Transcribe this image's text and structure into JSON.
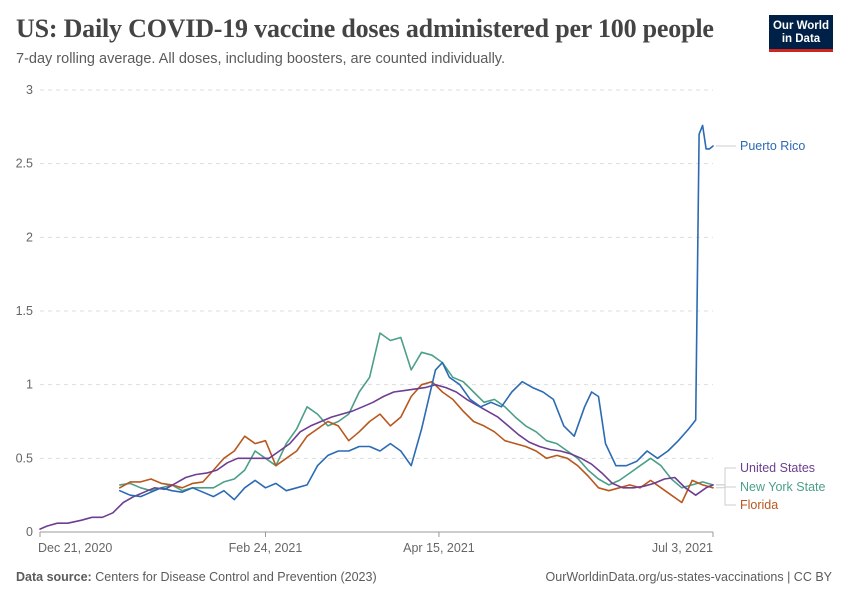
{
  "header": {
    "title": "US: Daily COVID-19 vaccine doses administered per 100 people",
    "subtitle": "7-day rolling average. All doses, including boosters, are counted individually.",
    "logo_line1": "Our World",
    "logo_line2": "in Data"
  },
  "footer": {
    "source_label": "Data source:",
    "source_text": "Centers for Disease Control and Prevention (2023)",
    "url_text": "OurWorldinData.org/us-states-vaccinations | CC BY"
  },
  "colors": {
    "United States": "#6d3e91",
    "Puerto Rico": "#2c6ab3",
    "New York State": "#4c9f89",
    "Florida": "#b8581f"
  },
  "chart_data": {
    "type": "line",
    "title": "US: Daily COVID-19 vaccine doses administered per 100 people",
    "xlabel": "",
    "ylabel": "",
    "ylim": [
      0,
      3
    ],
    "yticks": [
      0,
      0.5,
      1,
      1.5,
      2,
      2.5,
      3
    ],
    "ytick_labels": [
      "0",
      "0.5",
      "1",
      "1.5",
      "2",
      "2.5",
      "3"
    ],
    "xlim": [
      0,
      194
    ],
    "xtick_labels": [
      {
        "day": 0,
        "label": "Dec 21, 2020"
      },
      {
        "day": 65,
        "label": "Feb 24, 2021"
      },
      {
        "day": 115,
        "label": "Apr 15, 2021"
      },
      {
        "day": 194,
        "label": "Jul 3, 2021"
      }
    ],
    "x_unit": "days since Dec 21, 2020",
    "grid": true,
    "series": [
      {
        "name": "United States",
        "days": [
          0,
          2,
          5,
          8,
          12,
          15,
          18,
          21,
          24,
          27,
          30,
          33,
          36,
          39,
          42,
          45,
          48,
          51,
          54,
          57,
          60,
          63,
          66,
          69,
          72,
          75,
          78,
          81,
          84,
          87,
          90,
          93,
          96,
          99,
          102,
          105,
          108,
          111,
          114,
          117,
          120,
          123,
          126,
          129,
          132,
          135,
          138,
          141,
          144,
          147,
          150,
          153,
          156,
          159,
          162,
          165,
          168,
          171,
          174,
          177,
          180,
          183,
          186,
          189,
          192,
          194
        ],
        "values": [
          0.02,
          0.04,
          0.06,
          0.06,
          0.08,
          0.1,
          0.1,
          0.13,
          0.2,
          0.24,
          0.27,
          0.3,
          0.29,
          0.33,
          0.37,
          0.39,
          0.4,
          0.42,
          0.47,
          0.5,
          0.5,
          0.5,
          0.5,
          0.55,
          0.6,
          0.68,
          0.72,
          0.75,
          0.78,
          0.8,
          0.82,
          0.85,
          0.88,
          0.92,
          0.95,
          0.96,
          0.97,
          0.98,
          1.0,
          0.98,
          0.95,
          0.9,
          0.86,
          0.82,
          0.78,
          0.72,
          0.66,
          0.61,
          0.58,
          0.56,
          0.55,
          0.53,
          0.5,
          0.46,
          0.4,
          0.33,
          0.3,
          0.3,
          0.31,
          0.33,
          0.36,
          0.37,
          0.3,
          0.25,
          0.3,
          0.32
        ]
      },
      {
        "name": "Puerto Rico",
        "days": [
          23,
          26,
          29,
          32,
          35,
          38,
          41,
          44,
          47,
          50,
          53,
          56,
          59,
          62,
          65,
          68,
          71,
          74,
          77,
          80,
          83,
          86,
          89,
          92,
          95,
          98,
          101,
          104,
          107,
          110,
          112,
          114,
          116,
          118,
          121,
          124,
          127,
          130,
          133,
          136,
          139,
          142,
          145,
          148,
          151,
          154,
          157,
          159,
          161,
          163,
          166,
          169,
          172,
          175,
          178,
          181,
          184,
          187,
          189,
          190,
          191,
          192,
          193,
          194
        ],
        "values": [
          0.28,
          0.25,
          0.24,
          0.27,
          0.3,
          0.28,
          0.27,
          0.3,
          0.27,
          0.24,
          0.28,
          0.22,
          0.3,
          0.35,
          0.3,
          0.33,
          0.28,
          0.3,
          0.32,
          0.45,
          0.52,
          0.55,
          0.55,
          0.58,
          0.58,
          0.55,
          0.6,
          0.55,
          0.45,
          0.7,
          0.9,
          1.1,
          1.15,
          1.05,
          1.0,
          0.9,
          0.85,
          0.88,
          0.85,
          0.95,
          1.02,
          0.98,
          0.95,
          0.9,
          0.72,
          0.65,
          0.85,
          0.95,
          0.92,
          0.6,
          0.45,
          0.45,
          0.48,
          0.55,
          0.5,
          0.55,
          0.62,
          0.7,
          0.76,
          2.7,
          2.76,
          2.6,
          2.6,
          2.62
        ]
      },
      {
        "name": "New York State",
        "days": [
          23,
          26,
          29,
          32,
          35,
          38,
          41,
          44,
          47,
          50,
          53,
          56,
          59,
          62,
          65,
          68,
          71,
          74,
          77,
          80,
          83,
          86,
          89,
          92,
          95,
          98,
          101,
          104,
          107,
          110,
          113,
          116,
          119,
          122,
          125,
          128,
          131,
          134,
          137,
          140,
          143,
          146,
          149,
          152,
          155,
          158,
          161,
          164,
          167,
          170,
          173,
          176,
          179,
          182,
          185,
          188,
          191,
          194
        ],
        "values": [
          0.32,
          0.33,
          0.3,
          0.28,
          0.3,
          0.32,
          0.28,
          0.3,
          0.3,
          0.3,
          0.34,
          0.36,
          0.42,
          0.55,
          0.5,
          0.45,
          0.6,
          0.7,
          0.85,
          0.8,
          0.72,
          0.75,
          0.8,
          0.95,
          1.05,
          1.35,
          1.3,
          1.32,
          1.1,
          1.22,
          1.2,
          1.15,
          1.05,
          1.02,
          0.95,
          0.88,
          0.9,
          0.85,
          0.78,
          0.72,
          0.68,
          0.62,
          0.6,
          0.55,
          0.5,
          0.42,
          0.36,
          0.32,
          0.35,
          0.4,
          0.45,
          0.5,
          0.45,
          0.36,
          0.3,
          0.32,
          0.34,
          0.32
        ]
      },
      {
        "name": "Florida",
        "days": [
          23,
          26,
          29,
          32,
          35,
          38,
          41,
          44,
          47,
          50,
          53,
          56,
          59,
          62,
          65,
          68,
          71,
          74,
          77,
          80,
          83,
          86,
          89,
          92,
          95,
          98,
          101,
          104,
          107,
          110,
          113,
          116,
          119,
          122,
          125,
          128,
          131,
          134,
          137,
          140,
          143,
          146,
          149,
          152,
          155,
          158,
          161,
          164,
          167,
          170,
          173,
          176,
          179,
          182,
          185,
          188,
          191,
          194
        ],
        "values": [
          0.3,
          0.34,
          0.34,
          0.36,
          0.33,
          0.32,
          0.3,
          0.33,
          0.34,
          0.42,
          0.5,
          0.55,
          0.65,
          0.6,
          0.62,
          0.45,
          0.5,
          0.55,
          0.65,
          0.7,
          0.75,
          0.72,
          0.62,
          0.68,
          0.75,
          0.8,
          0.72,
          0.78,
          0.92,
          1.0,
          1.02,
          0.95,
          0.9,
          0.82,
          0.75,
          0.72,
          0.68,
          0.62,
          0.6,
          0.58,
          0.55,
          0.5,
          0.52,
          0.5,
          0.45,
          0.38,
          0.3,
          0.28,
          0.3,
          0.32,
          0.3,
          0.35,
          0.3,
          0.25,
          0.2,
          0.35,
          0.32,
          0.3
        ]
      }
    ],
    "legend": [
      {
        "name": "Puerto Rico",
        "label": "Puerto Rico"
      },
      {
        "name": "United States",
        "label": "United States"
      },
      {
        "name": "New York State",
        "label": "New York State"
      },
      {
        "name": "Florida",
        "label": "Florida"
      }
    ]
  }
}
